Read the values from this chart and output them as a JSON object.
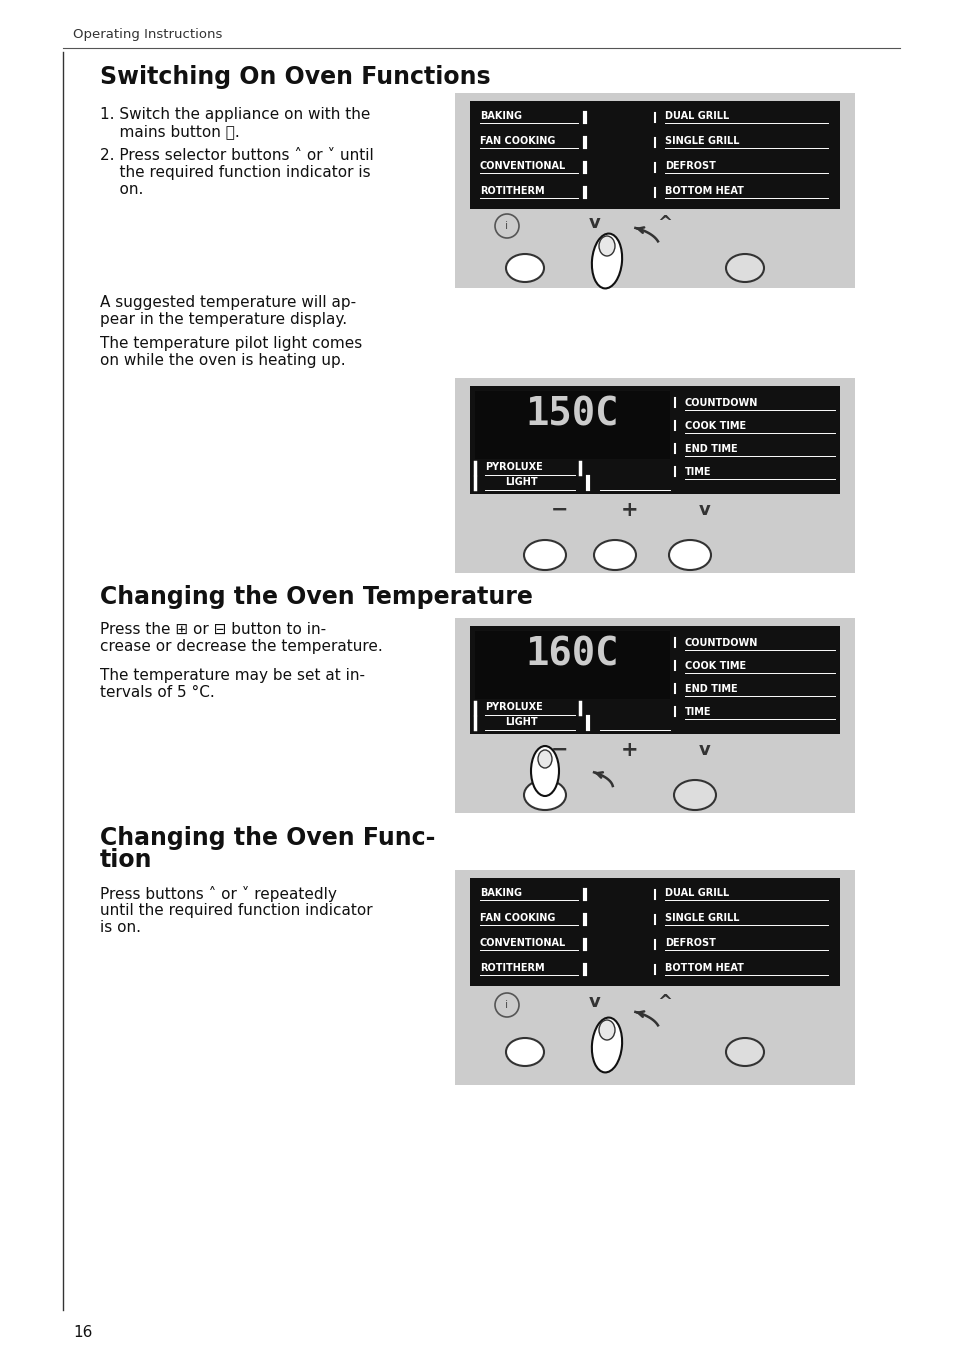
{
  "page_bg": "#ffffff",
  "header_text": "Operating Instructions",
  "page_number": "16",
  "panel_bg_light": "#cccccc",
  "panel_bg_dark": "#111111",
  "left_labels": [
    "BAKING",
    "FAN COOKING",
    "CONVENTIONAL",
    "ROTITHERM"
  ],
  "right_labels": [
    "DUAL GRILL",
    "SINGLE GRILL",
    "DEFROST",
    "BOTTOM HEAT"
  ],
  "rc_labels": [
    "COUNTDOWN",
    "COOK TIME",
    "END TIME",
    "TIME"
  ],
  "temp1": "150C",
  "temp2": "160C",
  "s1_title": "Switching On Oven Functions",
  "s1_step1a": "1. Switch the appliance on with the",
  "s1_step1b": "    mains button ⓞ.",
  "s1_step2a": "2. Press selector buttons ˄ or ˅ until",
  "s1_step2b": "    the required function indicator is",
  "s1_step2c": "    on.",
  "s1_body1a": "A suggested temperature will ap-",
  "s1_body1b": "pear in the temperature display.",
  "s1_body2a": "The temperature pilot light comes",
  "s1_body2b": "on while the oven is heating up.",
  "s2_title": "Changing the Oven Temperature",
  "s2_body1a": "Press the ⊞ or ⊟ button to in-",
  "s2_body1b": "crease or decrease the temperature.",
  "s2_body2a": "The temperature may be set at in-",
  "s2_body2b": "tervals of 5 °C.",
  "s3_title1": "Changing the Oven Func-",
  "s3_title2": "tion",
  "s3_body1": "Press buttons ˄ or ˅ repeatedly",
  "s3_body2": "until the required function indicator",
  "s3_body3": "is on."
}
